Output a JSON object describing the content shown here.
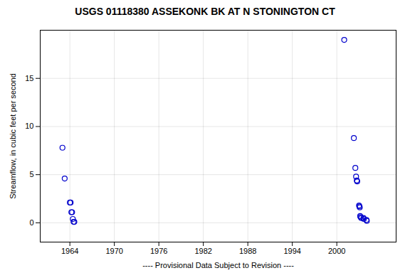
{
  "chart_data": {
    "type": "scatter",
    "title": "USGS 01118380 ASSEKONK BK AT N STONINGTON CT",
    "xlabel": "---- Provisional Data Subject to Revision ----",
    "ylabel": "Streamflow, in cubic feet per second",
    "x": [
      1963.0,
      1963.3,
      1964.0,
      1964.1,
      1964.2,
      1964.3,
      1964.4,
      1964.5,
      1964.6,
      2001.0,
      2002.3,
      2002.5,
      2002.6,
      2002.7,
      2002.75,
      2003.0,
      2003.05,
      2003.1,
      2003.15,
      2003.2,
      2003.3,
      2003.6,
      2003.65,
      2004.0,
      2004.05
    ],
    "values": [
      7.8,
      4.6,
      2.1,
      2.1,
      1.1,
      1.1,
      0.4,
      0.1,
      0.1,
      19.0,
      8.8,
      5.7,
      4.8,
      4.4,
      4.3,
      1.8,
      1.7,
      1.6,
      0.7,
      0.6,
      0.5,
      0.5,
      0.4,
      0.3,
      0.2
    ],
    "color": "#0000CC",
    "marker": "circle",
    "xlim": [
      1960,
      2008
    ],
    "ylim": [
      -2,
      20
    ],
    "xticks": [
      1964,
      1970,
      1976,
      1982,
      1988,
      1994,
      2000
    ],
    "yticks": [
      0,
      5,
      10,
      15
    ],
    "grid": true
  }
}
